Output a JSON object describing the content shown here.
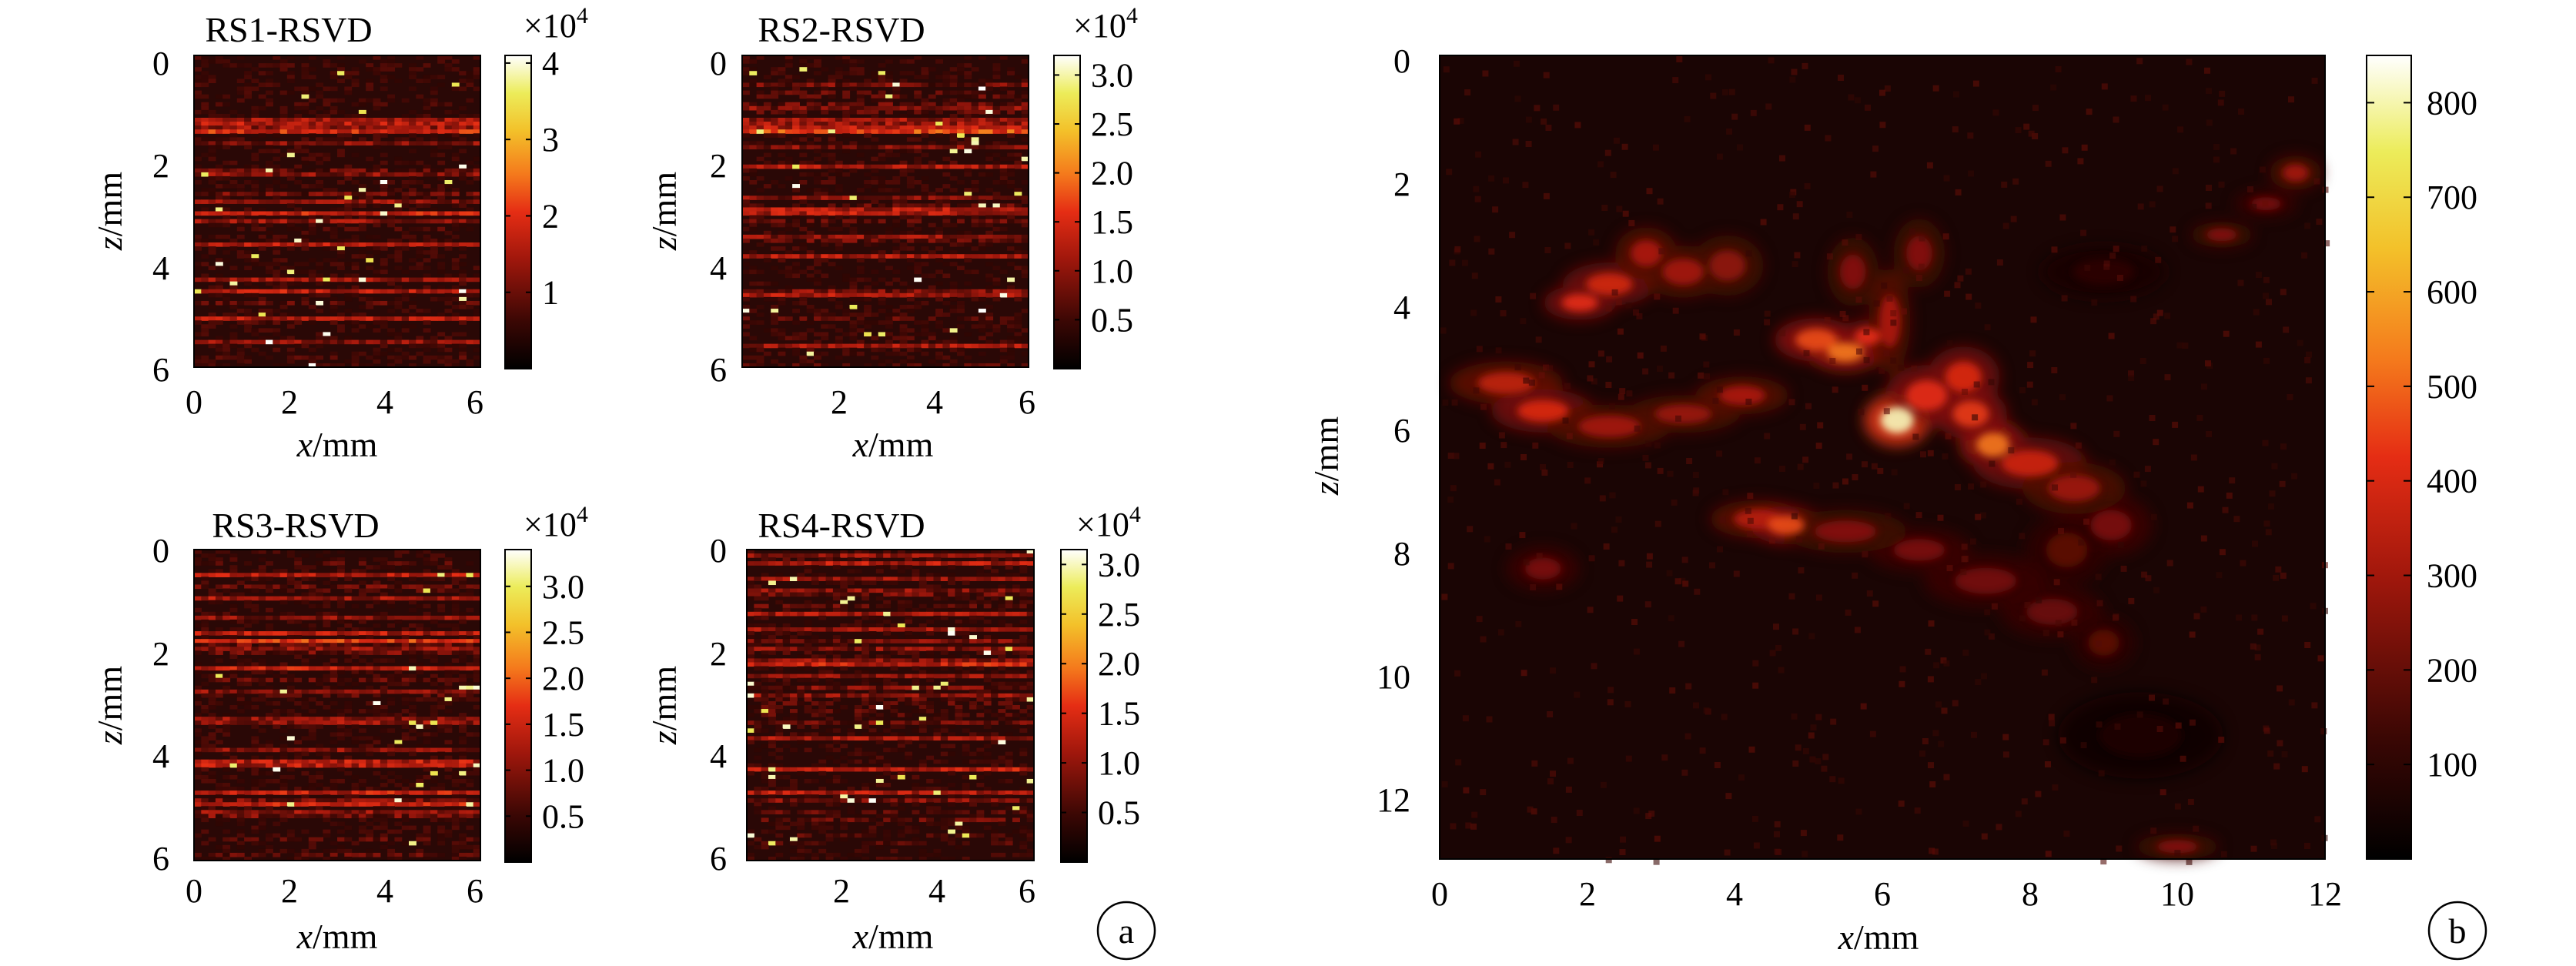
{
  "chart_data": [
    {
      "id": "p1",
      "type": "heatmap",
      "title": "RS1-RSVD",
      "xlabel_var": "x",
      "xlabel_unit": "/mm",
      "ylabel_var": "z",
      "ylabel_unit": "/mm",
      "xlim": [
        0,
        6
      ],
      "ylim": [
        0,
        6
      ],
      "y_reversed": true,
      "xticks": [
        0,
        2,
        4,
        6
      ],
      "xtick_labels": [
        "0",
        "2",
        "4",
        "6"
      ],
      "yticks": [
        0,
        2,
        4,
        6
      ],
      "ytick_labels": [
        "0",
        "2",
        "4",
        "6"
      ],
      "colorbar": {
        "multiplier": "×10",
        "exponent": "4",
        "range": [
          0,
          41000
        ],
        "ticks": [
          10000,
          20000,
          30000,
          40000
        ],
        "tick_labels": [
          "1",
          "2",
          "3",
          "4"
        ]
      },
      "colormap": "hot",
      "pattern": "horizontal bright streaks; strongest band near z≈1.3 mm",
      "grid": false
    },
    {
      "id": "p2",
      "type": "heatmap",
      "title": "RS2-RSVD",
      "xlabel_var": "x",
      "xlabel_unit": "/mm",
      "ylabel_var": "z",
      "ylabel_unit": "/mm",
      "xlim": [
        0,
        6
      ],
      "ylim": [
        0,
        6
      ],
      "y_reversed": true,
      "xticks": [
        2,
        4,
        6
      ],
      "xtick_labels": [
        "2",
        "4",
        "6"
      ],
      "yticks": [
        0,
        2,
        4,
        6
      ],
      "ytick_labels": [
        "0",
        "2",
        "4",
        "6"
      ],
      "colorbar": {
        "multiplier": "×10",
        "exponent": "4",
        "range": [
          0,
          32000
        ],
        "ticks": [
          5000,
          10000,
          15000,
          20000,
          25000,
          30000
        ],
        "tick_labels": [
          "0.5",
          "1.0",
          "1.5",
          "2.0",
          "2.5",
          "3.0"
        ]
      },
      "colormap": "hot",
      "pattern": "horizontal bright streaks; strongest band near z≈1.3 mm",
      "grid": false
    },
    {
      "id": "p3",
      "type": "heatmap",
      "title": "RS3-RSVD",
      "xlabel_var": "x",
      "xlabel_unit": "/mm",
      "ylabel_var": "z",
      "ylabel_unit": "/mm",
      "xlim": [
        0,
        6
      ],
      "ylim": [
        0,
        6
      ],
      "y_reversed": true,
      "xticks": [
        0,
        2,
        4,
        6
      ],
      "xtick_labels": [
        "0",
        "2",
        "4",
        "6"
      ],
      "yticks": [
        0,
        2,
        4,
        6
      ],
      "ytick_labels": [
        "0",
        "2",
        "4",
        "6"
      ],
      "colorbar": {
        "multiplier": "×10",
        "exponent": "4",
        "range": [
          0,
          34000
        ],
        "ticks": [
          5000,
          10000,
          15000,
          20000,
          25000,
          30000
        ],
        "tick_labels": [
          "0.5",
          "1.0",
          "1.5",
          "2.0",
          "2.5",
          "3.0"
        ]
      },
      "colormap": "hot",
      "pattern": "horizontal bright streaks; band near z≈1.8 mm and z≈5.6 mm",
      "grid": false
    },
    {
      "id": "p4",
      "type": "heatmap",
      "title": "RS4-RSVD",
      "xlabel_var": "x",
      "xlabel_unit": "/mm",
      "ylabel_var": "z",
      "ylabel_unit": "/mm",
      "xlim": [
        0,
        6
      ],
      "ylim": [
        0,
        6
      ],
      "y_reversed": true,
      "xticks": [
        2,
        4,
        6
      ],
      "xtick_labels": [
        "2",
        "4",
        "6"
      ],
      "yticks": [
        0,
        2,
        4,
        6
      ],
      "ytick_labels": [
        "0",
        "2",
        "4",
        "6"
      ],
      "colorbar": {
        "multiplier": "×10",
        "exponent": "4",
        "range": [
          0,
          31500
        ],
        "ticks": [
          5000,
          10000,
          15000,
          20000,
          25000,
          30000
        ],
        "tick_labels": [
          "0.5",
          "1.0",
          "1.5",
          "2.0",
          "2.5",
          "3.0"
        ]
      },
      "colormap": "hot",
      "pattern": "horizontal bright streaks spread over full depth",
      "grid": false
    },
    {
      "id": "p5",
      "type": "heatmap",
      "title": "",
      "xlabel_var": "x",
      "xlabel_unit": "/mm",
      "ylabel_var": "z",
      "ylabel_unit": "/mm",
      "xlim": [
        0,
        12
      ],
      "ylim": [
        0,
        13
      ],
      "y_reversed": true,
      "xticks": [
        0,
        2,
        4,
        6,
        8,
        10,
        12
      ],
      "xtick_labels": [
        "0",
        "2",
        "4",
        "6",
        "8",
        "10",
        "12"
      ],
      "yticks": [
        0,
        2,
        4,
        6,
        8,
        10,
        12
      ],
      "ytick_labels": [
        "0",
        "2",
        "4",
        "6",
        "8",
        "10",
        "12"
      ],
      "colorbar": {
        "multiplier": "",
        "exponent": "",
        "range": [
          0,
          850
        ],
        "ticks": [
          100,
          200,
          300,
          400,
          500,
          600,
          700,
          800
        ],
        "tick_labels": [
          "100",
          "200",
          "300",
          "400",
          "500",
          "600",
          "700",
          "800"
        ]
      },
      "colormap": "hot",
      "pattern": "vascular structure; bright hotspot at x≈6.2 mm, z≈5.9 mm",
      "hotspots": [
        {
          "x": 6.2,
          "z": 5.9,
          "value": 800
        },
        {
          "x": 5.4,
          "z": 4.7,
          "value": 650
        },
        {
          "x": 7.5,
          "z": 6.3,
          "value": 560
        },
        {
          "x": 1.2,
          "z": 5.7,
          "value": 450
        },
        {
          "x": 2.3,
          "z": 3.8,
          "value": 420
        },
        {
          "x": 4.6,
          "z": 7.6,
          "value": 460
        },
        {
          "x": 11.7,
          "z": 2.0,
          "value": 260
        }
      ],
      "grid": false
    }
  ],
  "labels": {
    "a": "a",
    "b": "b"
  }
}
